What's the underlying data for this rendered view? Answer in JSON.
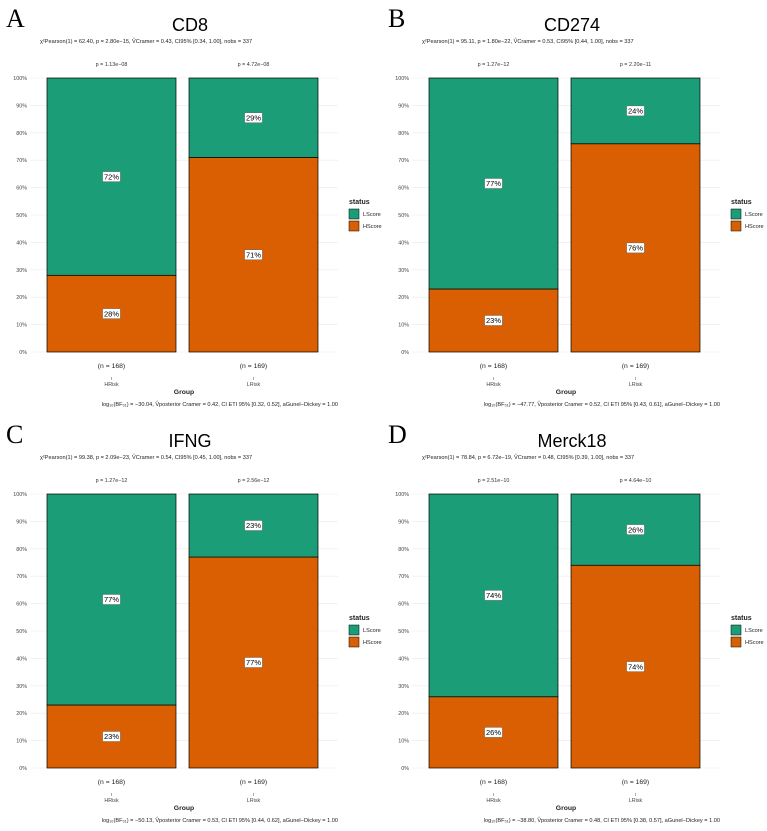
{
  "colors": {
    "LScore": "#1b9e77",
    "HScore": "#d95f02"
  },
  "legend": {
    "title": "status",
    "items": [
      "LScore",
      "HScore"
    ]
  },
  "y_ticks": [
    "0%",
    "10%",
    "20%",
    "30%",
    "40%",
    "50%",
    "60%",
    "70%",
    "80%",
    "90%",
    "100%"
  ],
  "chart_data": [
    {
      "panel": "A",
      "type": "bar",
      "title": "CD8",
      "subtitle": "χ²Pearson(1) = 62.40, p = 2.80e−15, V̂Cramer = 0.43, CI95% [0.34, 1.00], nobs = 337",
      "footer": "log₁₀(BF₀₁) = −30.04, V̂posterior Cramer = 0.42, CI ETI 95% [0.32, 0.52], aGunel−Dickey = 1.00",
      "xlabel": "Group",
      "ylim": [
        0,
        100
      ],
      "categories": [
        "HRisk",
        "LRisk"
      ],
      "p_values": [
        "p = 1.13e−08",
        "p = 4.72e−08"
      ],
      "n_labels": [
        "(n = 168)",
        "(n = 169)"
      ],
      "series": [
        {
          "name": "HScore",
          "values": [
            28,
            71
          ],
          "labels": [
            "28%",
            "71%"
          ]
        },
        {
          "name": "LScore",
          "values": [
            72,
            29
          ],
          "labels": [
            "72%",
            "29%"
          ]
        }
      ]
    },
    {
      "panel": "B",
      "type": "bar",
      "title": "CD274",
      "subtitle": "χ²Pearson(1) = 95.11, p = 1.80e−22, V̂Cramer = 0.53, CI95% [0.44, 1.00], nobs = 337",
      "footer": "log₁₀(BF₀₁) = −47.77, V̂posterior Cramer = 0.52, CI ETI 95% [0.43, 0.61], aGunel−Dickey = 1.00",
      "xlabel": "Group",
      "ylim": [
        0,
        100
      ],
      "categories": [
        "HRisk",
        "LRisk"
      ],
      "p_values": [
        "p = 1.27e−12",
        "p = 2.20e−11"
      ],
      "n_labels": [
        "(n = 168)",
        "(n = 169)"
      ],
      "series": [
        {
          "name": "HScore",
          "values": [
            23,
            76
          ],
          "labels": [
            "23%",
            "76%"
          ]
        },
        {
          "name": "LScore",
          "values": [
            77,
            24
          ],
          "labels": [
            "77%",
            "24%"
          ]
        }
      ]
    },
    {
      "panel": "C",
      "type": "bar",
      "title": "IFNG",
      "subtitle": "χ²Pearson(1) = 99.38, p = 2.09e−23, V̂Cramer = 0.54, CI95% [0.45, 1.00], nobs = 337",
      "footer": "log₁₀(BF₀₁) = −50.13, V̂posterior Cramer = 0.53, CI ETI 95% [0.44, 0.62], aGunel−Dickey = 1.00",
      "xlabel": "Group",
      "ylim": [
        0,
        100
      ],
      "categories": [
        "HRisk",
        "LRisk"
      ],
      "p_values": [
        "p = 1.27e−12",
        "p = 2.56e−12"
      ],
      "n_labels": [
        "(n = 168)",
        "(n = 169)"
      ],
      "series": [
        {
          "name": "HScore",
          "values": [
            23,
            77
          ],
          "labels": [
            "23%",
            "77%"
          ]
        },
        {
          "name": "LScore",
          "values": [
            77,
            23
          ],
          "labels": [
            "77%",
            "23%"
          ]
        }
      ]
    },
    {
      "panel": "D",
      "type": "bar",
      "title": "Merck18",
      "subtitle": "χ²Pearson(1) = 78.84, p = 6.72e−19, V̂Cramer = 0.48, CI95% [0.39, 1.00], nobs = 337",
      "footer": "log₁₀(BF₀₁) = −38.80, V̂posterior Cramer = 0.48, CI ETI 95% [0.38, 0.57], aGunel−Dickey = 1.00",
      "xlabel": "Group",
      "ylim": [
        0,
        100
      ],
      "categories": [
        "HRisk",
        "LRisk"
      ],
      "p_values": [
        "p = 2.51e−10",
        "p = 4.64e−10"
      ],
      "n_labels": [
        "(n = 168)",
        "(n = 169)"
      ],
      "series": [
        {
          "name": "HScore",
          "values": [
            26,
            74
          ],
          "labels": [
            "26%",
            "74%"
          ]
        },
        {
          "name": "LScore",
          "values": [
            74,
            26
          ],
          "labels": [
            "74%",
            "26%"
          ]
        }
      ]
    }
  ]
}
